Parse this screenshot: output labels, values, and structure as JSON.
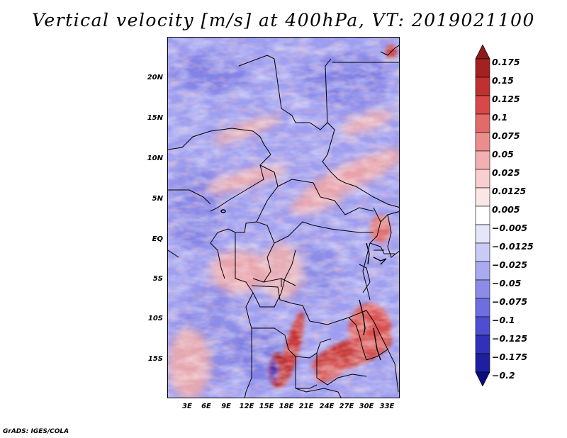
{
  "title": "Vertical velocity [m/s] at 400hPa, VT: 2019021100",
  "credit": "GrADS: IGES/COLA",
  "map": {
    "lat_labels": [
      "20N",
      "15N",
      "10N",
      "5N",
      "EQ",
      "5S",
      "10S",
      "15S"
    ],
    "lon_labels": [
      "3E",
      "6E",
      "9E",
      "12E",
      "15E",
      "18E",
      "21E",
      "24E",
      "27E",
      "30E",
      "33E"
    ]
  },
  "colorbar": {
    "labels": [
      "0.175",
      "0.15",
      "0.125",
      "0.1",
      "0.075",
      "0.05",
      "0.025",
      "0.0125",
      "0.005",
      "−0.005",
      "−0.0125",
      "−0.025",
      "−0.05",
      "−0.075",
      "−0.1",
      "−0.125",
      "−0.175",
      "−0.2"
    ],
    "colors": [
      "#8b1a1a",
      "#a52020",
      "#bf3030",
      "#d84848",
      "#e36a6a",
      "#ec8d8d",
      "#f3b0b0",
      "#f8cece",
      "#fbe6e6",
      "#ffffff",
      "#e6e6fa",
      "#cacaf6",
      "#aaaaf0",
      "#8c8ce8",
      "#6e6ee0",
      "#4e4ed2",
      "#3030bb",
      "#1e1ea0",
      "#0c0c80"
    ]
  }
}
